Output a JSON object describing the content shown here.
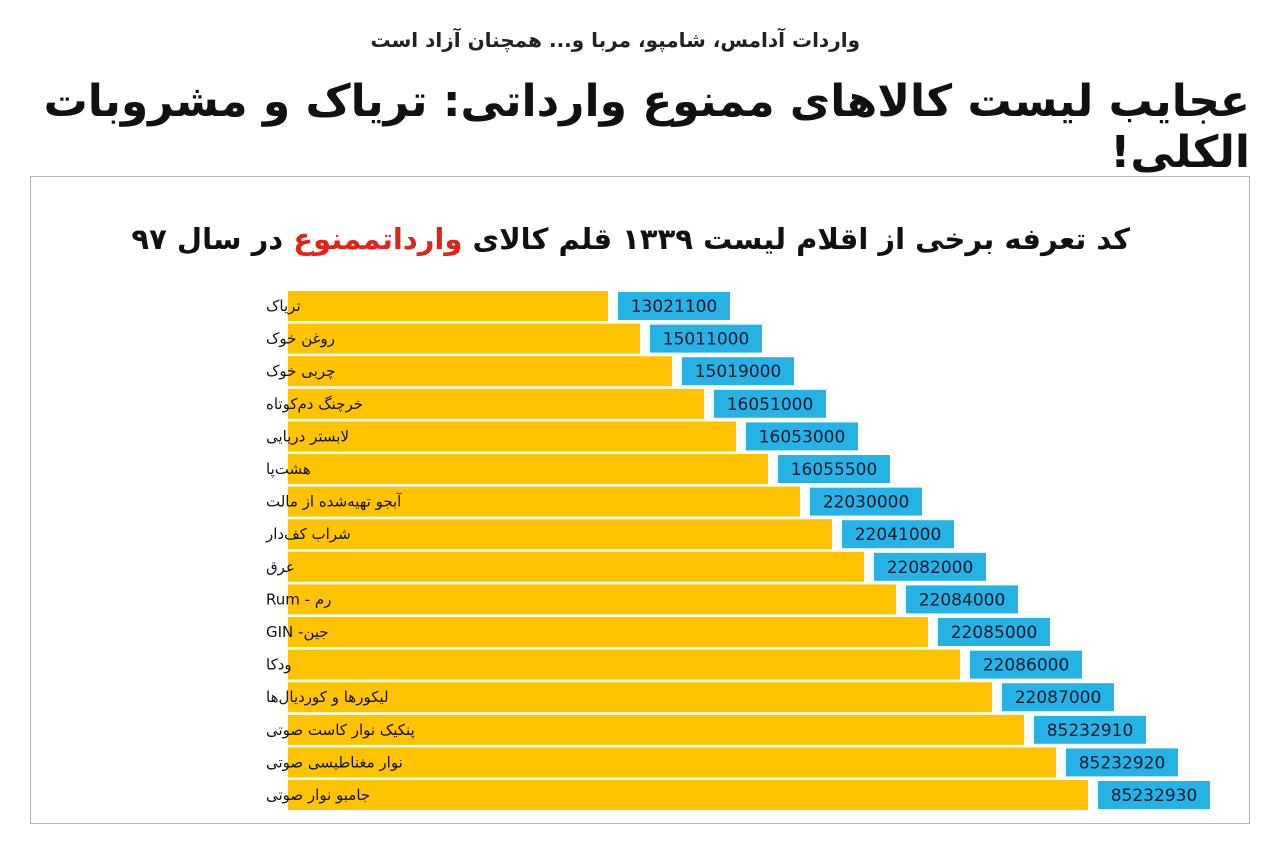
{
  "header": {
    "kicker": "واردات آدامس، شامپو، مربا و... همچنان آزاد است",
    "headline": "عجایب لیست کالاهای ممنوع وارداتی: تریاک و مشروبات الکلی!"
  },
  "chart_title": {
    "part1": "کد تعرفه برخی از اقلام لیست ۱۳۳۹ قلم کالای",
    "highlight": "وارداتممنوع",
    "part2": "در سال ۹۷"
  },
  "colors": {
    "bar": "#ffc300",
    "value_box": "#27b2e6",
    "highlight": "#e2231a"
  },
  "chart_data": {
    "type": "bar",
    "orientation": "horizontal",
    "categories": [
      "تریاک",
      "روغن خوک",
      "چربی خوک",
      "خرچنگ دم‌کوتاه",
      "لابستر دریایی",
      "هشت‌پا",
      "آبجو تهیه‌شده از مالت",
      "شراب کف‌دار",
      "عرق",
      "رم - Rum",
      "جین- GIN",
      "ودکا",
      "لیکورها و کوردیال‌ها",
      "پنکیک نوار کاست صوتی",
      "نوار مغناطیسی صوتی",
      "جامبو نوار صوتی"
    ],
    "values": [
      13021100,
      15011000,
      15019000,
      16051000,
      16053000,
      16055500,
      22030000,
      22041000,
      22082000,
      22084000,
      22085000,
      22086000,
      22087000,
      85232910,
      85232920,
      85232930
    ],
    "value_labels": [
      "13021100",
      "15011000",
      "15019000",
      "16051000",
      "16053000",
      "16055500",
      "22030000",
      "22041000",
      "22082000",
      "22084000",
      "22085000",
      "22086000",
      "22087000",
      "85232910",
      "85232920",
      "85232930"
    ],
    "bar_order_rank": [
      1,
      2,
      3,
      4,
      5,
      6,
      7,
      8,
      9,
      10,
      11,
      12,
      13,
      14,
      15,
      16
    ]
  }
}
